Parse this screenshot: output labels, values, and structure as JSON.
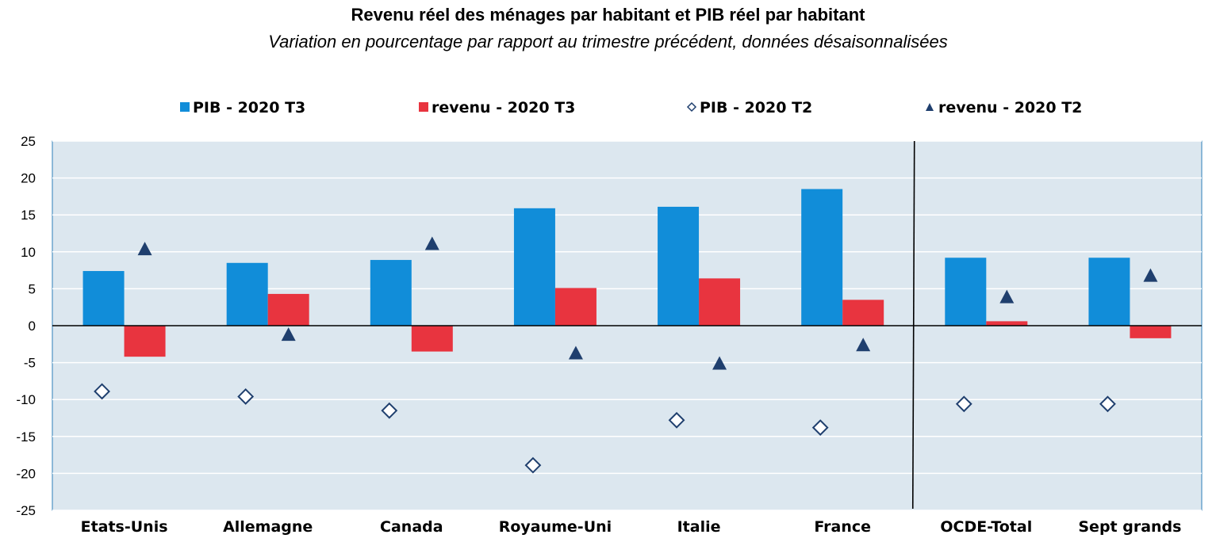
{
  "chart_data": {
    "type": "bar",
    "title": "Revenu réel des ménages par habitant et PIB réel par habitant",
    "subtitle": "Variation en pourcentage par rapport au trimestre précédent, données désaisonnalisées",
    "categories": [
      "Etats-Unis",
      "Allemagne",
      "Canada",
      "Royaume-Uni",
      "Italie",
      "France",
      "OCDE-Total",
      "Sept grands"
    ],
    "series": [
      {
        "name": "PIB - 2020 T3",
        "mark": "bar",
        "color": "#118DD9",
        "values": [
          7.4,
          8.5,
          8.9,
          15.9,
          16.1,
          18.5,
          9.2,
          9.2
        ]
      },
      {
        "name": "revenu - 2020 T3",
        "mark": "bar",
        "color": "#E8343F",
        "values": [
          -4.2,
          4.3,
          -3.5,
          5.1,
          6.4,
          3.5,
          0.6,
          -1.7
        ]
      },
      {
        "name": "PIB - 2020 T2",
        "mark": "diamond",
        "color": "#1F3F6E",
        "values": [
          -8.9,
          -9.6,
          -11.5,
          -18.9,
          -12.8,
          -13.8,
          -10.6,
          -10.6
        ]
      },
      {
        "name": "revenu - 2020 T2",
        "mark": "triangle",
        "color": "#1F3F6E",
        "values": [
          10.4,
          -1.2,
          11.1,
          -3.7,
          -5.1,
          -2.6,
          3.9,
          6.8
        ]
      }
    ],
    "ylim": [
      -25,
      25
    ],
    "yticks": [
      "25",
      "20",
      "15",
      "10",
      "5",
      "0",
      "-5",
      "-10",
      "-15",
      "-20",
      "-25"
    ],
    "grid": true,
    "legend_position": "top",
    "separator_after_category": "France",
    "plot_background": "#DCE7EF"
  }
}
